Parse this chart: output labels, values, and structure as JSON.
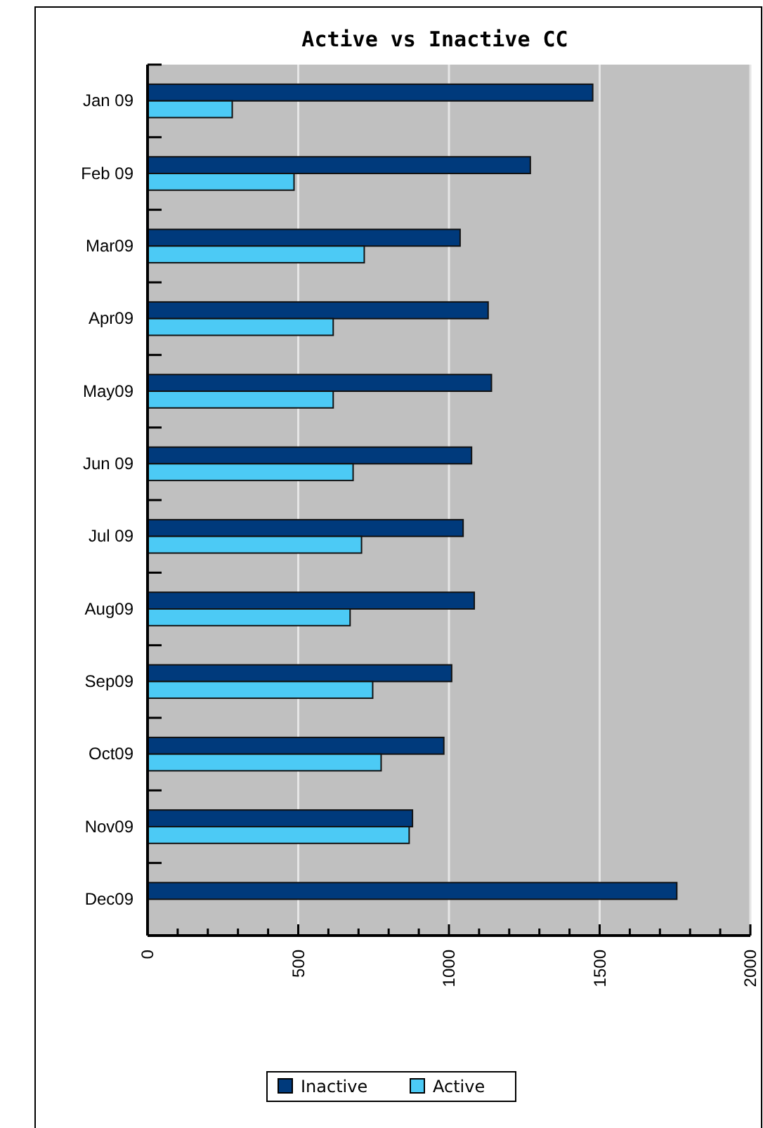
{
  "chart_data": {
    "type": "bar",
    "orientation": "horizontal",
    "title": "Active vs Inactive CC",
    "categories": [
      "Jan 09",
      "Feb 09",
      "Mar09",
      "Apr09",
      "May09",
      "Jun 09",
      "Jul 09",
      "Aug09",
      "Sep09",
      "Oct09",
      "Nov09",
      "Dec09"
    ],
    "series": [
      {
        "name": "Inactive",
        "color": "#003a7c",
        "values": [
          1477,
          1270,
          1037,
          1130,
          1141,
          1075,
          1047,
          1084,
          1009,
          983,
          879,
          1756
        ]
      },
      {
        "name": "Active",
        "color": "#4ccaf5",
        "values": [
          281,
          486,
          719,
          616,
          616,
          682,
          710,
          672,
          747,
          775,
          868,
          null
        ]
      }
    ],
    "xlim": [
      0,
      2000
    ],
    "xticks": [
      0,
      {
        "value": 100,
        "label": null
      },
      {
        "value": 200,
        "label": null
      },
      {
        "value": 300,
        "label": null
      },
      {
        "value": 400,
        "label": null
      },
      500,
      {
        "value": 600,
        "label": null
      },
      {
        "value": 700,
        "label": null
      },
      {
        "value": 800,
        "label": null
      },
      {
        "value": 900,
        "label": null
      },
      1000,
      {
        "value": 1100,
        "label": null
      },
      {
        "value": 1200,
        "label": null
      },
      {
        "value": 1300,
        "label": null
      },
      {
        "value": 1400,
        "label": null
      },
      1500,
      {
        "value": 1600,
        "label": null
      },
      {
        "value": 1700,
        "label": null
      },
      {
        "value": 1800,
        "label": null
      },
      {
        "value": 1900,
        "label": null
      },
      2000
    ],
    "grid": "x",
    "legend": "bottom"
  }
}
